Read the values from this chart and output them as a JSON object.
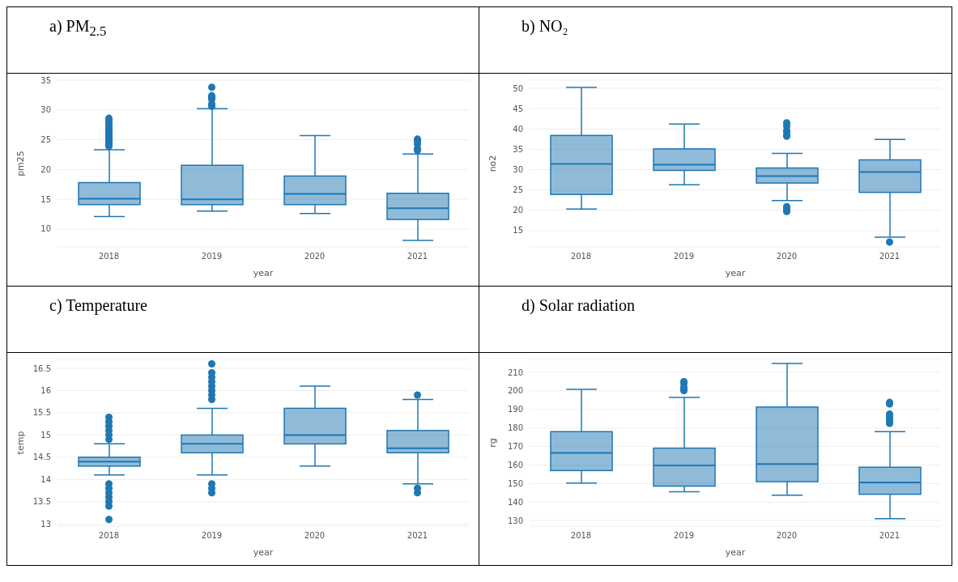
{
  "chart_data": [
    {
      "type": "box",
      "title": "a)   PM$_{2.5}$",
      "xlabel": "year",
      "ylabel": "pm25",
      "categories": [
        "2018",
        "2019",
        "2020",
        "2021"
      ],
      "color": "#1f77b4",
      "ylim": [
        7,
        35
      ],
      "yticks": [
        10,
        15,
        20,
        25,
        30,
        35
      ],
      "grid": "y",
      "boxes": [
        {
          "low": 12.1,
          "q1": 14.1,
          "median": 15.1,
          "q3": 17.8,
          "high": 23.3,
          "outliers": [
            23.9,
            24.2,
            24.5,
            24.8,
            25.2,
            25.5,
            25.8,
            26.1,
            26.4,
            26.8,
            27.1,
            27.5,
            28.0,
            28.3,
            28.6
          ]
        },
        {
          "low": 13.0,
          "q1": 14.1,
          "median": 15.0,
          "q3": 20.7,
          "high": 30.2,
          "outliers": [
            30.6,
            31.0,
            31.8,
            32.1,
            32.4,
            33.8
          ]
        },
        {
          "low": 12.6,
          "q1": 14.1,
          "median": 15.9,
          "q3": 18.9,
          "high": 25.7
        },
        {
          "low": 8.1,
          "q1": 11.6,
          "median": 13.5,
          "q3": 16.0,
          "high": 22.6,
          "outliers": [
            23.2,
            23.5,
            24.3,
            24.8,
            25.1
          ]
        }
      ]
    },
    {
      "type": "box",
      "title": "b)   NO₂",
      "xlabel": "year",
      "ylabel": "no2",
      "categories": [
        "2018",
        "2019",
        "2020",
        "2021"
      ],
      "color": "#1f77b4",
      "ylim": [
        11,
        52
      ],
      "yticks": [
        15,
        20,
        25,
        30,
        35,
        40,
        45,
        50
      ],
      "grid": "y",
      "boxes": [
        {
          "low": 20.3,
          "q1": 23.9,
          "median": 31.4,
          "q3": 38.4,
          "high": 50.2
        },
        {
          "low": 26.3,
          "q1": 29.8,
          "median": 31.2,
          "q3": 35.1,
          "high": 41.2
        },
        {
          "low": 22.4,
          "q1": 26.7,
          "median": 28.4,
          "q3": 30.4,
          "high": 34.0,
          "outliers": [
            38.2,
            38.5,
            39.3,
            39.6,
            40.7,
            41.5,
            19.7,
            20.0,
            20.4,
            20.9
          ]
        },
        {
          "low": 13.4,
          "q1": 24.4,
          "median": 29.4,
          "q3": 32.4,
          "high": 37.4,
          "outliers": [
            12.2
          ]
        }
      ]
    },
    {
      "type": "box",
      "title": "c)   Temperature",
      "xlabel": "year",
      "ylabel": "temp",
      "categories": [
        "2018",
        "2019",
        "2020",
        "2021"
      ],
      "color": "#1f77b4",
      "ylim": [
        12.95,
        16.7
      ],
      "yticks": [
        13,
        13.5,
        14,
        14.5,
        15,
        15.5,
        16,
        16.5
      ],
      "grid": "y",
      "boxes": [
        {
          "low": 14.1,
          "q1": 14.3,
          "median": 14.4,
          "q3": 14.5,
          "high": 14.8,
          "outliers": [
            14.9,
            15.0,
            15.1,
            15.2,
            15.3,
            15.4,
            13.9,
            13.8,
            13.7,
            13.6,
            13.5,
            13.4,
            13.1
          ]
        },
        {
          "low": 14.1,
          "q1": 14.6,
          "median": 14.8,
          "q3": 15.0,
          "high": 15.6,
          "outliers": [
            15.8,
            15.9,
            16.0,
            16.1,
            16.2,
            16.3,
            16.4,
            16.6,
            13.9,
            13.8,
            13.7
          ]
        },
        {
          "low": 14.3,
          "q1": 14.8,
          "median": 15.0,
          "q3": 15.6,
          "high": 16.1
        },
        {
          "low": 13.9,
          "q1": 14.6,
          "median": 14.7,
          "q3": 15.1,
          "high": 15.8,
          "outliers": [
            15.9,
            13.8,
            13.7
          ]
        }
      ]
    },
    {
      "type": "box",
      "title": "d)   Solar radiation",
      "xlabel": "year",
      "ylabel": "rg",
      "categories": [
        "2018",
        "2019",
        "2020",
        "2021"
      ],
      "color": "#1f77b4",
      "ylim": [
        127,
        217
      ],
      "yticks": [
        130,
        140,
        150,
        160,
        170,
        180,
        190,
        200,
        210
      ],
      "grid": "y",
      "boxes": [
        {
          "low": 150.3,
          "q1": 157,
          "median": 166.5,
          "q3": 178,
          "high": 200.8
        },
        {
          "low": 145.6,
          "q1": 148.6,
          "median": 159.8,
          "q3": 169.1,
          "high": 196.5,
          "outliers": [
            200.2,
            201,
            202,
            204,
            205
          ]
        },
        {
          "low": 143.7,
          "q1": 151,
          "median": 160.5,
          "q3": 191.3,
          "high": 214.8
        },
        {
          "low": 131,
          "q1": 144.2,
          "median": 150.6,
          "q3": 158.8,
          "high": 178,
          "outliers": [
            182.5,
            184,
            185,
            186.5,
            187.5,
            193,
            193.8
          ]
        }
      ]
    }
  ]
}
